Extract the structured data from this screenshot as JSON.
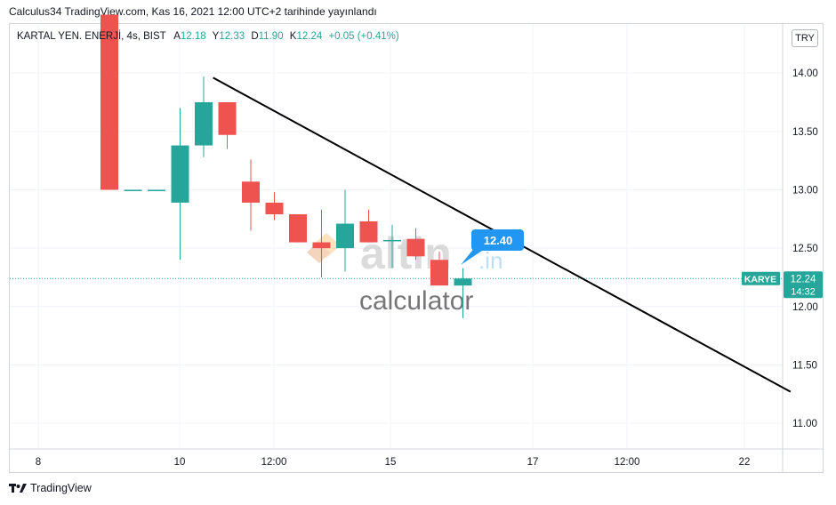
{
  "header": {
    "title": "Calculus34 TradingView.com, Kas 16, 2021 12:00 UTC+2 tarihinde yayınlandı"
  },
  "legend": {
    "symbol": "KARTAL YEN. ENERJİ, 4s, BIST",
    "open_label": "A",
    "open": "12.18",
    "high_label": "Y",
    "high": "12.33",
    "low_label": "D",
    "low": "11.90",
    "close_label": "K",
    "close": "12.24",
    "change": "+0.05 (+0.41%)"
  },
  "currency_button": "TRY",
  "footer": {
    "brand": "TradingView"
  },
  "watermark": {
    "brand": "altin",
    "suffix": ".in",
    "sub": "calculator"
  },
  "price_tags": {
    "ticker": "KARYE",
    "price": "12.24",
    "countdown": "14:32",
    "callout": "12.40"
  },
  "colors": {
    "up": "#26a69a",
    "down": "#ef5350",
    "callout": "#2196f3",
    "trendline": "#000000",
    "grid": "#f0f3fa"
  },
  "chart_data": {
    "type": "candlestick",
    "y_axis": {
      "ticks": [
        "14.00",
        "13.50",
        "13.00",
        "12.50",
        "12.00",
        "11.50",
        "11.00"
      ],
      "range": [
        10.78,
        14.42
      ]
    },
    "x_axis": {
      "ticks": [
        "8",
        "10",
        "12:00",
        "15",
        "17",
        "12:00",
        "22"
      ]
    },
    "grid": true,
    "candles": [
      {
        "open": 14.5,
        "high": 14.5,
        "low": 13.0,
        "close": 13.0
      },
      {
        "open": 13.0,
        "high": 13.0,
        "low": 13.0,
        "close": 13.0
      },
      {
        "open": 13.0,
        "high": 13.0,
        "low": 13.0,
        "close": 13.0
      },
      {
        "open": 12.89,
        "high": 13.7,
        "low": 12.4,
        "close": 13.38
      },
      {
        "open": 13.38,
        "high": 13.97,
        "low": 13.28,
        "close": 13.75
      },
      {
        "open": 13.75,
        "high": 13.75,
        "low": 13.35,
        "close": 13.47
      },
      {
        "open": 13.07,
        "high": 13.26,
        "low": 12.65,
        "close": 12.89
      },
      {
        "open": 12.89,
        "high": 12.98,
        "low": 12.74,
        "close": 12.79
      },
      {
        "open": 12.79,
        "high": 12.79,
        "low": 12.55,
        "close": 12.55
      },
      {
        "open": 12.55,
        "high": 12.83,
        "low": 12.25,
        "close": 12.5
      },
      {
        "open": 12.5,
        "high": 13.0,
        "low": 12.3,
        "close": 12.71
      },
      {
        "open": 12.73,
        "high": 12.83,
        "low": 12.55,
        "close": 12.55
      },
      {
        "open": 12.57,
        "high": 12.7,
        "low": 12.33,
        "close": 12.57
      },
      {
        "open": 12.58,
        "high": 12.67,
        "low": 12.4,
        "close": 12.43
      },
      {
        "open": 12.4,
        "high": 12.47,
        "low": 12.18,
        "close": 12.18
      },
      {
        "open": 12.18,
        "high": 12.33,
        "low": 11.9,
        "close": 12.24
      }
    ],
    "trendline": {
      "from": {
        "bar": 4.4,
        "price": 13.96
      },
      "to": {
        "bar": 28.9,
        "price": 11.27
      }
    },
    "last_price": 12.24
  }
}
